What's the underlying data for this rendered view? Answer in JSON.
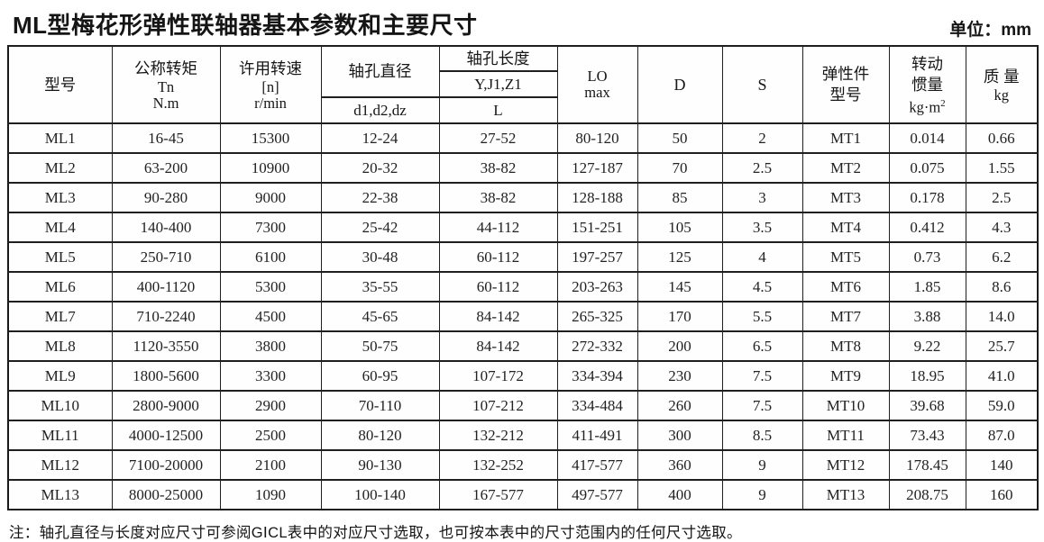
{
  "page": {
    "title": "ML型梅花形弹性联轴器基本参数和主要尺寸",
    "unit_label": "单位：mm",
    "footnote": "注：轴孔直径与长度对应尺寸可参阅GⅠCL表中的对应尺寸选取，也可按本表中的尺寸范围内的任何尺寸选取。"
  },
  "table": {
    "header": {
      "model": "型号",
      "torque_title": "公称转矩",
      "torque_symbol": "Tn",
      "torque_unit": "N.m",
      "speed_title": "许用转速",
      "speed_symbol": "[n]",
      "speed_unit": "r/min",
      "bore_dia_title": "轴孔直径",
      "bore_dia_symbols": "d1,d2,dz",
      "bore_len_title": "轴孔长度",
      "bore_len_types": "Y,J1,Z1",
      "bore_len_symbol": "L",
      "lo_title": "LO",
      "lo_sub": "max",
      "d_title": "D",
      "s_title": "S",
      "elastic_line1": "弹性件",
      "elastic_line2": "型号",
      "inertia_line1": "转动",
      "inertia_line2": "惯量",
      "inertia_unit": "kg·m",
      "inertia_unit_sup": "2",
      "mass_title": "质 量",
      "mass_unit": "kg"
    },
    "rows": [
      [
        "ML1",
        "16-45",
        "15300",
        "12-24",
        "27-52",
        "80-120",
        "50",
        "2",
        "MT1",
        "0.014",
        "0.66"
      ],
      [
        "ML2",
        "63-200",
        "10900",
        "20-32",
        "38-82",
        "127-187",
        "70",
        "2.5",
        "MT2",
        "0.075",
        "1.55"
      ],
      [
        "ML3",
        "90-280",
        "9000",
        "22-38",
        "38-82",
        "128-188",
        "85",
        "3",
        "MT3",
        "0.178",
        "2.5"
      ],
      [
        "ML4",
        "140-400",
        "7300",
        "25-42",
        "44-112",
        "151-251",
        "105",
        "3.5",
        "MT4",
        "0.412",
        "4.3"
      ],
      [
        "ML5",
        "250-710",
        "6100",
        "30-48",
        "60-112",
        "197-257",
        "125",
        "4",
        "MT5",
        "0.73",
        "6.2"
      ],
      [
        "ML6",
        "400-1120",
        "5300",
        "35-55",
        "60-112",
        "203-263",
        "145",
        "4.5",
        "MT6",
        "1.85",
        "8.6"
      ],
      [
        "ML7",
        "710-2240",
        "4500",
        "45-65",
        "84-142",
        "265-325",
        "170",
        "5.5",
        "MT7",
        "3.88",
        "14.0"
      ],
      [
        "ML8",
        "1120-3550",
        "3800",
        "50-75",
        "84-142",
        "272-332",
        "200",
        "6.5",
        "MT8",
        "9.22",
        "25.7"
      ],
      [
        "ML9",
        "1800-5600",
        "3300",
        "60-95",
        "107-172",
        "334-394",
        "230",
        "7.5",
        "MT9",
        "18.95",
        "41.0"
      ],
      [
        "ML10",
        "2800-9000",
        "2900",
        "70-110",
        "107-212",
        "334-484",
        "260",
        "7.5",
        "MT10",
        "39.68",
        "59.0"
      ],
      [
        "ML11",
        "4000-12500",
        "2500",
        "80-120",
        "132-212",
        "411-491",
        "300",
        "8.5",
        "MT11",
        "73.43",
        "87.0"
      ],
      [
        "ML12",
        "7100-20000",
        "2100",
        "90-130",
        "132-252",
        "417-577",
        "360",
        "9",
        "MT12",
        "178.45",
        "140"
      ],
      [
        "ML13",
        "8000-25000",
        "1090",
        "100-140",
        "167-577",
        "497-577",
        "400",
        "9",
        "MT13",
        "208.75",
        "160"
      ]
    ]
  }
}
